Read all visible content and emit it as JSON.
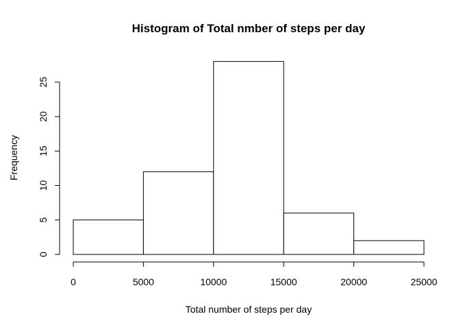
{
  "chart_data": {
    "type": "bar",
    "title": "Histogram of Total nmber of steps per day",
    "xlabel": "Total number of steps per day",
    "ylabel": "Frequency",
    "bins": [
      {
        "start": 0,
        "end": 5000,
        "count": 5
      },
      {
        "start": 5000,
        "end": 10000,
        "count": 12
      },
      {
        "start": 10000,
        "end": 15000,
        "count": 28
      },
      {
        "start": 15000,
        "end": 20000,
        "count": 6
      },
      {
        "start": 20000,
        "end": 25000,
        "count": 2
      }
    ],
    "xlim": [
      0,
      25000
    ],
    "ylim": [
      0,
      28
    ],
    "xticks": [
      0,
      5000,
      10000,
      15000,
      20000,
      25000
    ],
    "yticks": [
      0,
      5,
      10,
      15,
      20,
      25
    ],
    "grid": false,
    "legend": "none"
  }
}
